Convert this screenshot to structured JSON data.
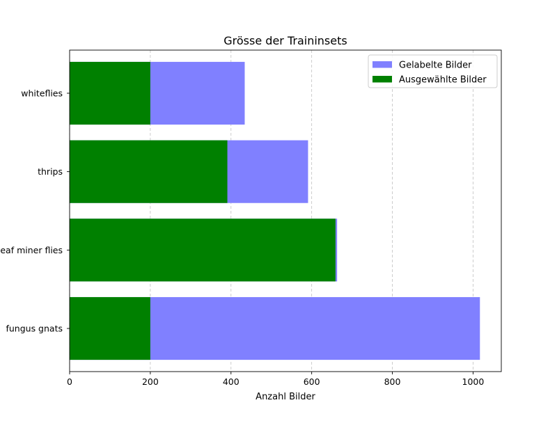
{
  "chart_data": {
    "type": "bar",
    "orientation": "horizontal",
    "title": "Grösse der Traininsets",
    "xlabel": "Anzahl Bilder",
    "ylabel": "",
    "categories": [
      "fungus gnats",
      "leaf miner flies",
      "thrips",
      "whiteflies"
    ],
    "xlim": [
      0,
      1070
    ],
    "xticks": [
      0,
      200,
      400,
      600,
      800,
      1000
    ],
    "grid": "x-dashed",
    "legend_position": "top-right",
    "series": [
      {
        "name": "Gelabelte Bilder",
        "color": "#8080ff",
        "values": [
          1017,
          663,
          591,
          434
        ]
      },
      {
        "name": "Ausgewählte Bilder",
        "color": "#008000",
        "values": [
          200,
          659,
          391,
          200
        ]
      }
    ]
  }
}
